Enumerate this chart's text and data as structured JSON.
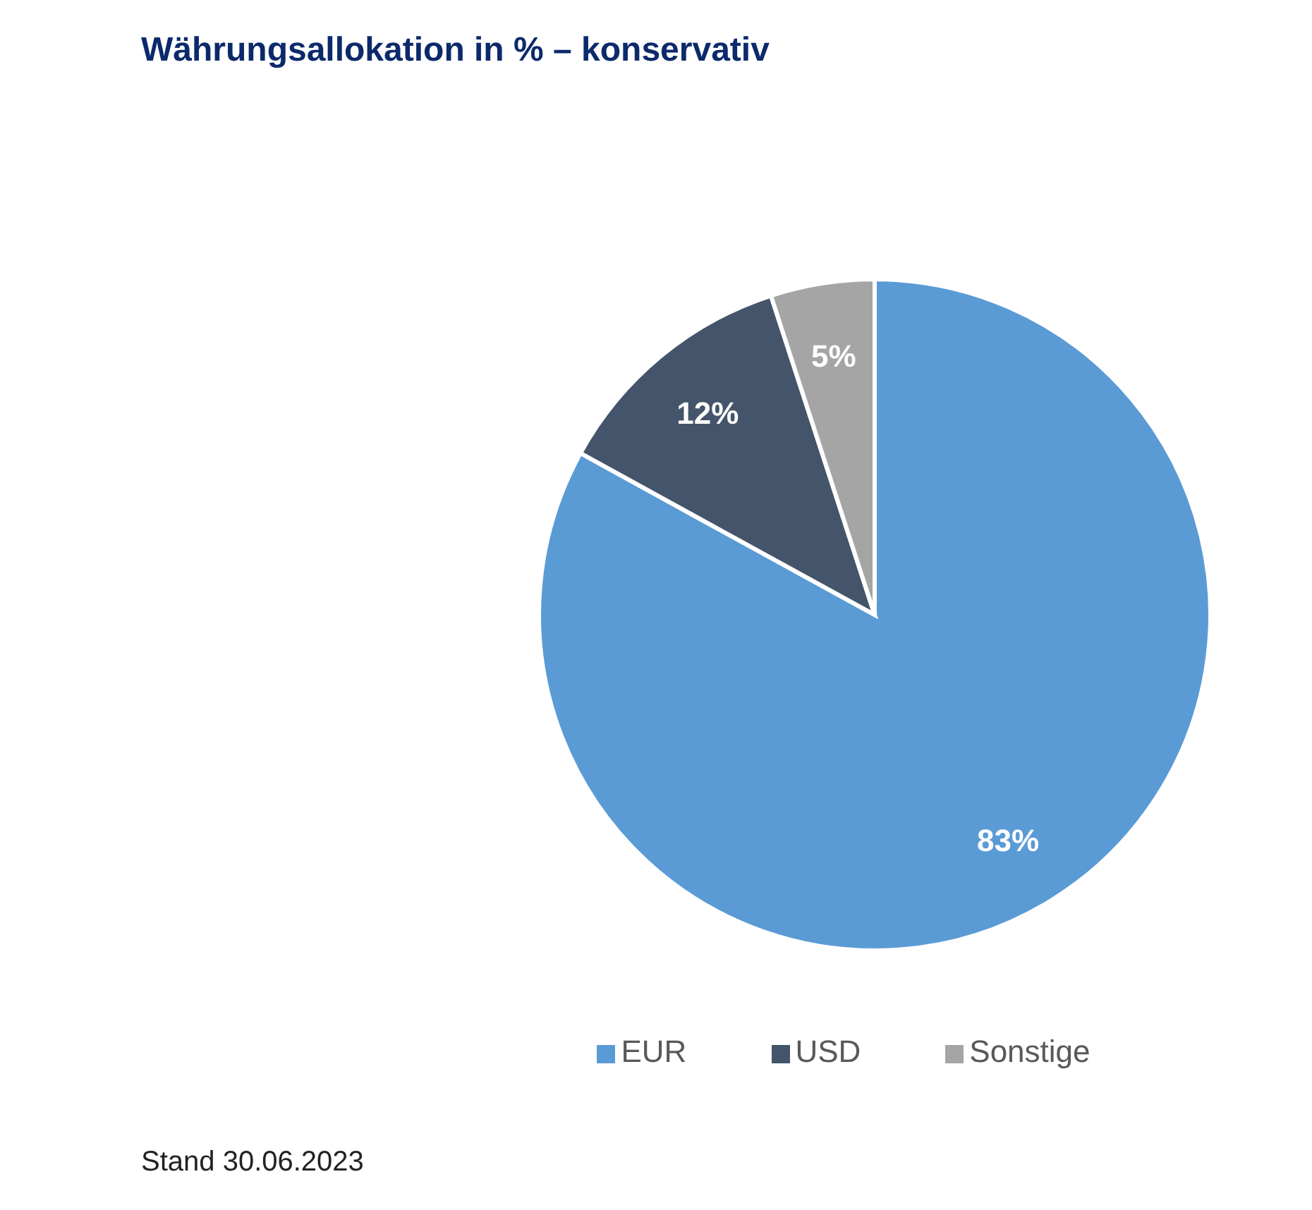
{
  "chart_data": {
    "type": "pie",
    "title": "Währungsallokation in % – konservativ",
    "categories": [
      "EUR",
      "USD",
      "Sonstige"
    ],
    "values": [
      83,
      12,
      5
    ],
    "colors": [
      "#5b9bd5",
      "#44546a",
      "#a5a5a5"
    ],
    "value_labels": [
      "83%",
      "12%",
      "5%"
    ],
    "legend": "bottom",
    "annotations": [
      "Stand 30.06.2023"
    ]
  }
}
